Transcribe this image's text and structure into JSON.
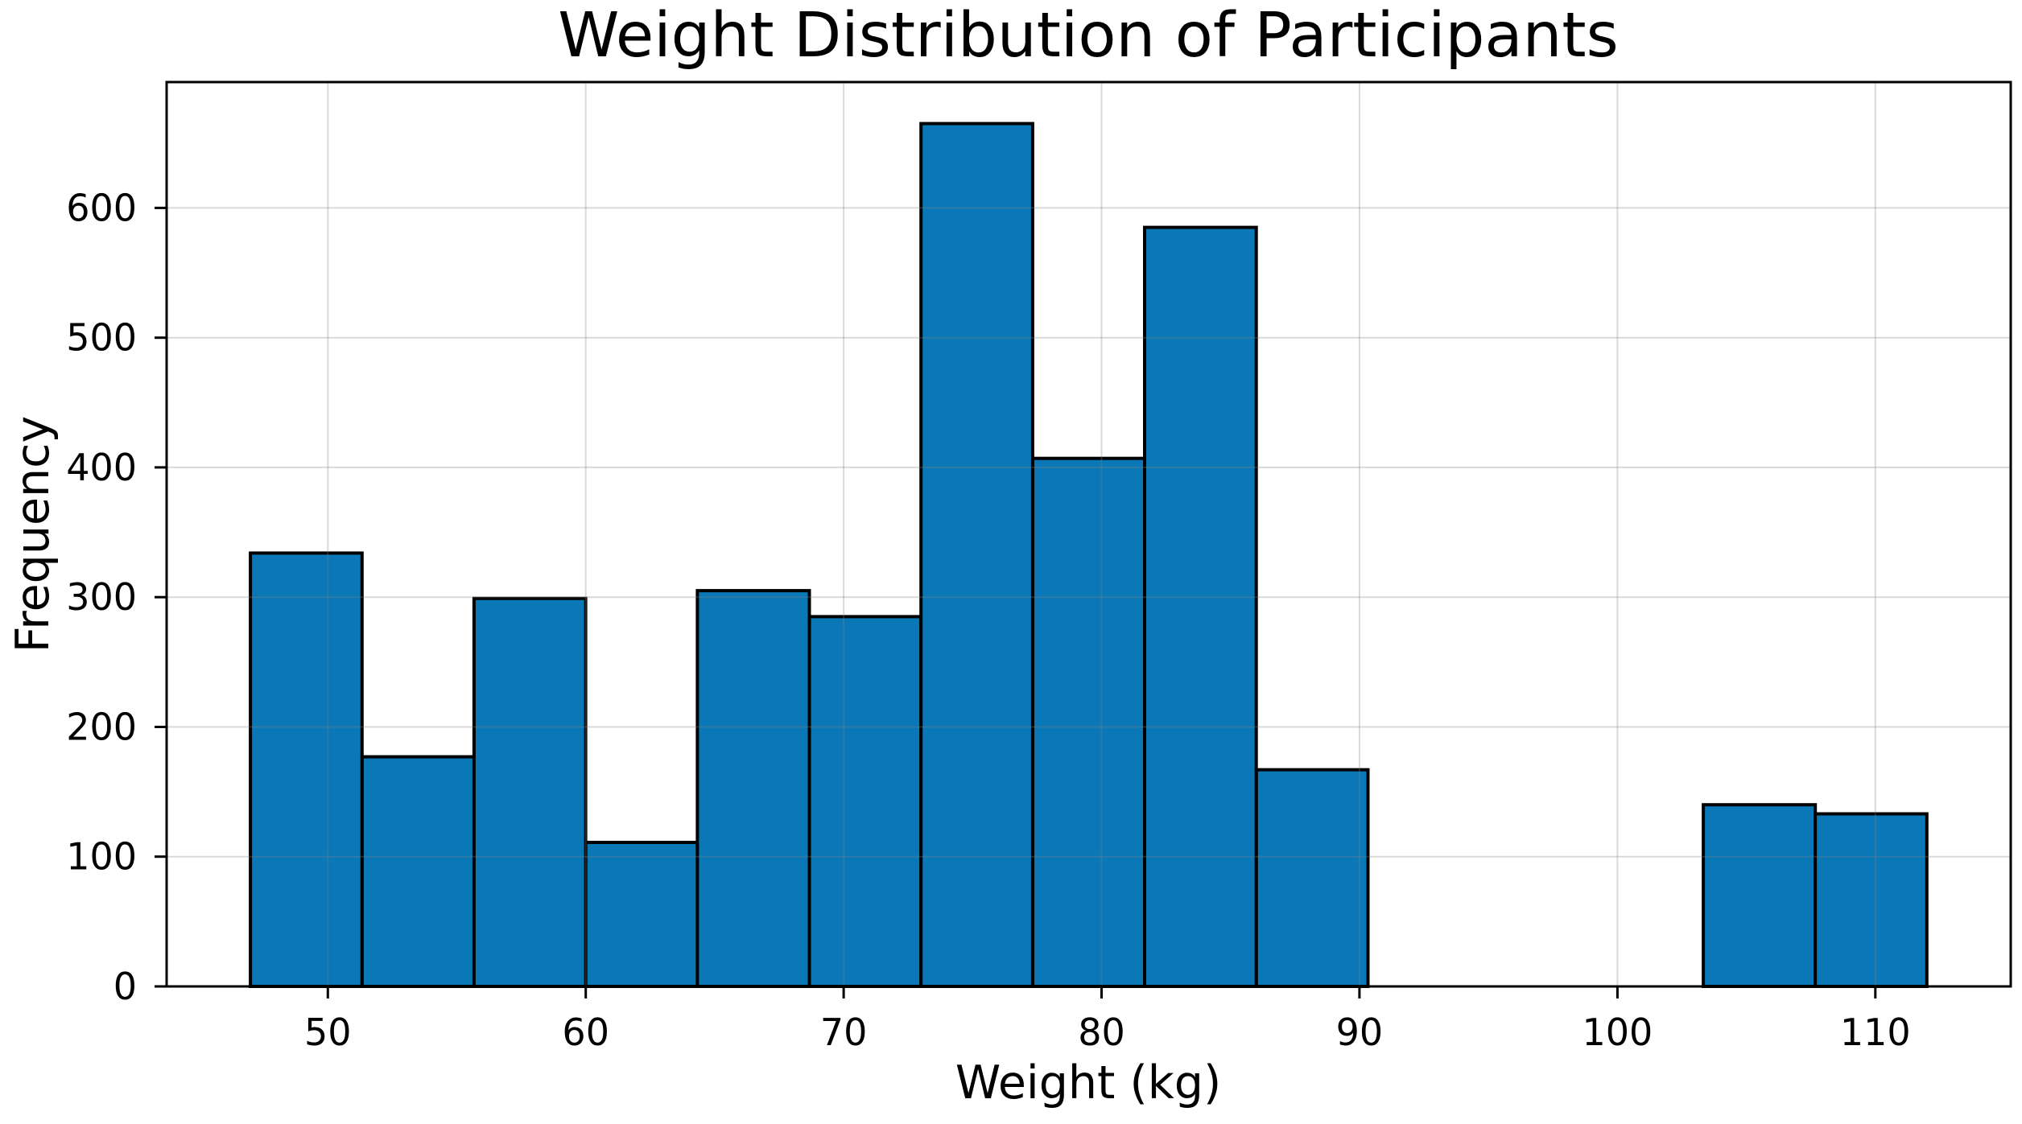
{
  "figure": {
    "background": "#ffffff"
  },
  "chart_data": {
    "type": "bar",
    "subtype": "histogram",
    "title": "Weight Distribution of Participants",
    "xlabel": "Weight (kg)",
    "ylabel": "Frequency",
    "bin_edges": [
      47.0,
      51.33,
      55.67,
      60.0,
      64.33,
      68.67,
      73.0,
      77.33,
      81.67,
      86.0,
      90.33,
      94.67,
      99.0,
      103.33,
      107.67,
      112.0
    ],
    "counts": [
      334,
      177,
      299,
      111,
      305,
      285,
      665,
      407,
      585,
      167,
      0,
      0,
      0,
      140,
      133
    ],
    "x_ticks": [
      50,
      60,
      70,
      80,
      90,
      100,
      110
    ],
    "y_ticks": [
      0,
      100,
      200,
      300,
      400,
      500,
      600
    ],
    "xlim": [
      43.75,
      115.25
    ],
    "ylim": [
      0,
      697
    ],
    "grid": true,
    "legend": false,
    "colors": {
      "bar_fill": "#0a78b7",
      "bar_edge": "#000000",
      "grid_line": "rgba(128,128,128,0.3)",
      "spine": "#000000",
      "text": "#000000"
    }
  }
}
